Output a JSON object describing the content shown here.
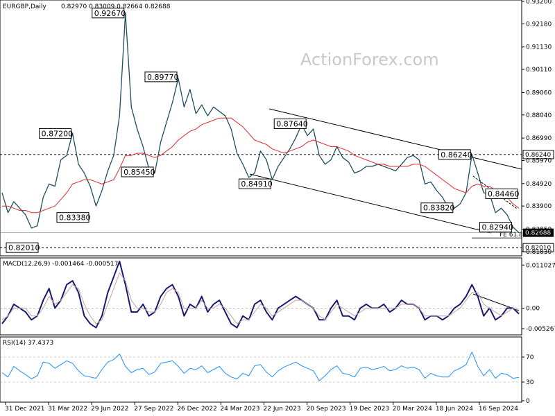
{
  "header": {
    "symbol": "EURGBP,Daily",
    "ohlc": "0.82970 0.83009 0.82664 0.82688",
    "macd": "MACD(12,26,9) -0.001464 -0.000517",
    "rsi": "RSI(14) 37.4373"
  },
  "watermark": "ActionForex.com",
  "colors": {
    "price": "#1c4e5e",
    "ma": "#e0262b",
    "channel": "#000000",
    "macd_line": "#191970",
    "signal_line": "#c8a0a0",
    "rsi_line": "#1e90ff",
    "current_box": "#000000",
    "watermark": "#c9c9c9"
  },
  "chart_data": [
    {
      "type": "line",
      "panel": "price",
      "ylim": [
        0.817,
        0.932
      ],
      "y_ticks": [
        "0.93200",
        "0.92180",
        "0.91130",
        "0.90110",
        "0.89060",
        "0.88040",
        "0.86990",
        "0.85970",
        "0.84920",
        "0.83900",
        "0.82850",
        "0.81830"
      ],
      "y_tick_values": [
        0.932,
        0.9218,
        0.9113,
        0.9011,
        0.8906,
        0.8804,
        0.8699,
        0.8597,
        0.8492,
        0.839,
        0.8285,
        0.8183
      ],
      "x_ticks": [
        "31 Dec 2021",
        "31 Mar 2022",
        "29 Jun 2022",
        "27 Sep 2022",
        "26 Dec 2022",
        "24 Mar 2023",
        "22 Jun 2023",
        "20 Sep 2023",
        "19 Dec 2023",
        "20 Mar 2024",
        "18 Jun 2024",
        "16 Sep 2024"
      ],
      "series": [
        {
          "role": "price",
          "values": [
            0.845,
            0.836,
            0.841,
            0.838,
            0.835,
            0.829,
            0.83,
            0.843,
            0.849,
            0.848,
            0.86,
            0.862,
            0.872,
            0.858,
            0.854,
            0.848,
            0.839,
            0.846,
            0.855,
            0.862,
            0.88,
            0.9267,
            0.884,
            0.874,
            0.866,
            0.856,
            0.854,
            0.868,
            0.877,
            0.886,
            0.897,
            0.884,
            0.892,
            0.881,
            0.885,
            0.88,
            0.884,
            0.882,
            0.88,
            0.874,
            0.863,
            0.858,
            0.852,
            0.854,
            0.864,
            0.86,
            0.851,
            0.857,
            0.861,
            0.865,
            0.87,
            0.876,
            0.871,
            0.874,
            0.862,
            0.858,
            0.86,
            0.866,
            0.861,
            0.859,
            0.854,
            0.855,
            0.857,
            0.857,
            0.858,
            0.857,
            0.856,
            0.855,
            0.858,
            0.861,
            0.862,
            0.86,
            0.849,
            0.85,
            0.846,
            0.843,
            0.838,
            0.838,
            0.84,
            0.845,
            0.8624,
            0.854,
            0.845,
            0.8446,
            0.836,
            0.838,
            0.835,
            0.8294,
            0.8269
          ]
        },
        {
          "role": "moving_average",
          "values": [
            0.839,
            0.839,
            0.838,
            0.837,
            0.837,
            0.836,
            0.836,
            0.837,
            0.838,
            0.839,
            0.842,
            0.845,
            0.849,
            0.85,
            0.851,
            0.851,
            0.85,
            0.849,
            0.85,
            0.851,
            0.856,
            0.862,
            0.862,
            0.863,
            0.863,
            0.862,
            0.861,
            0.862,
            0.864,
            0.866,
            0.869,
            0.871,
            0.873,
            0.874,
            0.876,
            0.877,
            0.878,
            0.879,
            0.879,
            0.879,
            0.877,
            0.875,
            0.872,
            0.869,
            0.868,
            0.867,
            0.865,
            0.864,
            0.863,
            0.864,
            0.865,
            0.866,
            0.868,
            0.869,
            0.868,
            0.867,
            0.866,
            0.866,
            0.865,
            0.864,
            0.862,
            0.861,
            0.86,
            0.859,
            0.858,
            0.858,
            0.857,
            0.857,
            0.857,
            0.857,
            0.858,
            0.858,
            0.857,
            0.855,
            0.853,
            0.851,
            0.849,
            0.847,
            0.846,
            0.845,
            0.848,
            0.849,
            0.848,
            0.848,
            0.846,
            0.845,
            0.843,
            0.84,
            0.838
          ]
        }
      ],
      "price_labels": [
        {
          "text": "0.92670",
          "value": 0.9267
        },
        {
          "text": "0.89770",
          "value": 0.8977
        },
        {
          "text": "0.87200",
          "value": 0.872
        },
        {
          "text": "0.85450",
          "value": 0.8545
        },
        {
          "text": "0.83380",
          "value": 0.8338
        },
        {
          "text": "0.82010",
          "value": 0.8201
        },
        {
          "text": "0.87640",
          "value": 0.8764
        },
        {
          "text": "0.84910",
          "value": 0.8491
        },
        {
          "text": "0.86240",
          "value": 0.8624
        },
        {
          "text": "0.83820",
          "value": 0.8382
        },
        {
          "text": "0.84460",
          "value": 0.8446
        },
        {
          "text": "0.82940",
          "value": 0.8294
        }
      ],
      "current_price": "0.82688",
      "current_value": 0.82688,
      "fe_label": "FE 61.8",
      "levels": [
        "0.86240",
        "0.82010"
      ]
    },
    {
      "type": "line",
      "panel": "macd",
      "ylim": [
        -0.0065,
        0.0125
      ],
      "y_ticks": [
        "0.011027",
        "0.00",
        "-0.005267"
      ],
      "y_tick_values": [
        0.011027,
        0,
        -0.005267
      ],
      "series": [
        {
          "role": "macd",
          "values": [
            -0.004,
            -0.002,
            0.001,
            0.0,
            -0.001,
            -0.003,
            -0.002,
            0.002,
            0.005,
            0.0,
            0.002,
            0.006,
            0.007,
            0.004,
            -0.002,
            -0.004,
            -0.005,
            -0.002,
            0.004,
            0.008,
            0.012,
            0.006,
            -0.001,
            -0.001,
            0.001,
            -0.002,
            -0.001,
            0.003,
            0.005,
            0.006,
            0.003,
            -0.002,
            0.001,
            0.0,
            0.003,
            -0.001,
            0.001,
            0.002,
            -0.001,
            -0.004,
            -0.005,
            -0.002,
            -0.003,
            0.001,
            0.002,
            -0.001,
            -0.003,
            0.0,
            0.001,
            0.002,
            0.003,
            0.002,
            0.001,
            0.0,
            -0.003,
            -0.003,
            0.0,
            0.002,
            -0.002,
            -0.002,
            -0.003,
            0.0,
            0.001,
            0.0,
            0.0,
            0.001,
            -0.001,
            0.0,
            0.002,
            0.001,
            0.001,
            0.0,
            -0.003,
            -0.002,
            -0.002,
            -0.003,
            -0.002,
            0.0,
            0.001,
            0.003,
            0.006,
            0.003,
            -0.002,
            0.0,
            -0.003,
            -0.002,
            0.0,
            0.0,
            -0.001464
          ]
        },
        {
          "role": "signal",
          "values": [
            -0.003,
            -0.002,
            0.0,
            0.0,
            0.0,
            -0.002,
            -0.002,
            0.0,
            0.003,
            0.001,
            0.002,
            0.004,
            0.006,
            0.005,
            0.001,
            -0.002,
            -0.004,
            -0.003,
            0.001,
            0.005,
            0.009,
            0.007,
            0.002,
            0.0,
            0.0,
            -0.001,
            -0.001,
            0.001,
            0.004,
            0.005,
            0.004,
            0.0,
            0.0,
            0.0,
            0.002,
            0.0,
            0.0,
            0.001,
            0.0,
            -0.002,
            -0.004,
            -0.003,
            -0.003,
            -0.001,
            0.001,
            0.0,
            -0.002,
            -0.001,
            0.0,
            0.001,
            0.002,
            0.002,
            0.001,
            0.0,
            -0.002,
            -0.003,
            -0.001,
            0.001,
            0.0,
            -0.001,
            -0.002,
            -0.001,
            0.0,
            0.0,
            0.0,
            0.0,
            0.0,
            0.0,
            0.001,
            0.001,
            0.001,
            0.0,
            -0.002,
            -0.002,
            -0.002,
            -0.002,
            -0.002,
            -0.001,
            0.0,
            0.002,
            0.004,
            0.004,
            0.001,
            0.0,
            -0.001,
            -0.002,
            -0.001,
            0.0,
            -0.000517
          ]
        }
      ]
    },
    {
      "type": "line",
      "panel": "rsi",
      "ylim": [
        0,
        100
      ],
      "y_ticks": [
        "70",
        "30",
        "0"
      ],
      "y_tick_values": [
        70,
        30,
        0
      ],
      "series": [
        {
          "role": "rsi",
          "values": [
            45,
            38,
            55,
            48,
            42,
            35,
            40,
            62,
            60,
            52,
            58,
            64,
            60,
            48,
            40,
            38,
            36,
            50,
            62,
            66,
            75,
            55,
            45,
            50,
            52,
            42,
            46,
            60,
            62,
            64,
            55,
            44,
            52,
            50,
            56,
            45,
            50,
            55,
            44,
            38,
            35,
            44,
            40,
            56,
            58,
            46,
            38,
            48,
            54,
            58,
            62,
            56,
            52,
            48,
            32,
            40,
            50,
            56,
            44,
            42,
            38,
            52,
            54,
            50,
            52,
            55,
            48,
            50,
            56,
            52,
            54,
            50,
            36,
            44,
            40,
            38,
            38,
            48,
            52,
            58,
            78,
            55,
            40,
            50,
            36,
            44,
            42,
            36,
            37.4
          ]
        }
      ]
    }
  ]
}
